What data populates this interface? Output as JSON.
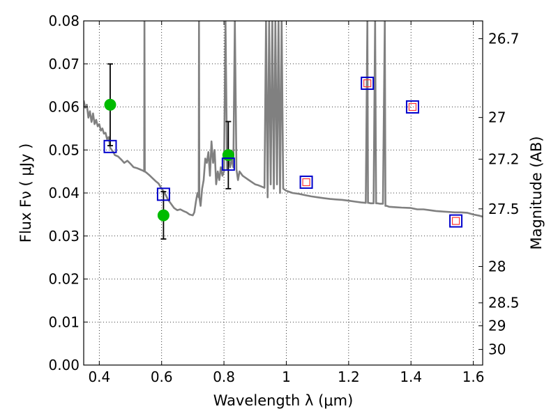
{
  "chart_data": {
    "type": "line",
    "xlabel": "Wavelength  λ (μm)",
    "ylabel": "Flux  Fν  ( μJy )",
    "y2label": "Magnitude (AB)",
    "xlim": [
      0.35,
      1.63
    ],
    "ylim": [
      0,
      0.08
    ],
    "grid": true,
    "x_ticks": [
      {
        "value": 0.4,
        "label": "0.4"
      },
      {
        "value": 0.6,
        "label": "0.6"
      },
      {
        "value": 0.8,
        "label": "0.8"
      },
      {
        "value": 1.0,
        "label": "1"
      },
      {
        "value": 1.2,
        "label": "1.2"
      },
      {
        "value": 1.4,
        "label": "1.4"
      },
      {
        "value": 1.6,
        "label": "1.6"
      }
    ],
    "y_ticks": [
      {
        "value": 0.0,
        "label": "0.00"
      },
      {
        "value": 0.01,
        "label": "0.01"
      },
      {
        "value": 0.02,
        "label": "0.02"
      },
      {
        "value": 0.03,
        "label": "0.03"
      },
      {
        "value": 0.04,
        "label": "0.04"
      },
      {
        "value": 0.05,
        "label": "0.05"
      },
      {
        "value": 0.06,
        "label": "0.06"
      },
      {
        "value": 0.07,
        "label": "0.07"
      },
      {
        "value": 0.08,
        "label": "0.08"
      }
    ],
    "mag_ticks": [
      {
        "value": 26.7,
        "label": "26.7"
      },
      {
        "value": 27.0,
        "label": "27"
      },
      {
        "value": 27.2,
        "label": "27.2"
      },
      {
        "value": 27.5,
        "label": "27.5"
      },
      {
        "value": 28.0,
        "label": "28"
      },
      {
        "value": 28.5,
        "label": "28.5"
      },
      {
        "value": 29.0,
        "label": "29"
      },
      {
        "value": 30.0,
        "label": "30"
      }
    ],
    "colors": {
      "spectrum": "#808080",
      "observed": "#00bb00",
      "model_box": "#0000cc",
      "model_inner": "#ff3333",
      "errorbar": "#000000"
    },
    "spectrum": {
      "x": [
        0.35,
        0.355,
        0.36,
        0.365,
        0.37,
        0.375,
        0.38,
        0.385,
        0.39,
        0.395,
        0.4,
        0.405,
        0.41,
        0.415,
        0.42,
        0.425,
        0.43,
        0.435,
        0.44,
        0.445,
        0.45,
        0.46,
        0.47,
        0.48,
        0.49,
        0.5,
        0.51,
        0.52,
        0.53,
        0.54,
        0.544,
        0.545,
        0.546,
        0.55,
        0.56,
        0.57,
        0.58,
        0.59,
        0.6,
        0.61,
        0.62,
        0.63,
        0.64,
        0.65,
        0.66,
        0.67,
        0.68,
        0.69,
        0.7,
        0.705,
        0.71,
        0.715,
        0.719,
        0.72,
        0.721,
        0.725,
        0.73,
        0.735,
        0.74,
        0.745,
        0.75,
        0.755,
        0.76,
        0.765,
        0.77,
        0.775,
        0.78,
        0.785,
        0.79,
        0.795,
        0.8,
        0.805,
        0.81,
        0.815,
        0.82,
        0.825,
        0.83,
        0.835,
        0.84,
        0.845,
        0.85,
        0.86,
        0.87,
        0.88,
        0.89,
        0.9,
        0.91,
        0.92,
        0.93,
        0.935,
        0.94,
        0.945,
        0.95,
        0.955,
        0.96,
        0.965,
        0.97,
        0.975,
        0.98,
        0.985,
        0.99,
        1.0,
        1.02,
        1.04,
        1.06,
        1.08,
        1.1,
        1.12,
        1.14,
        1.16,
        1.18,
        1.2,
        1.22,
        1.24,
        1.255,
        1.26,
        1.262,
        1.265,
        1.27,
        1.28,
        1.285,
        1.288,
        1.292,
        1.3,
        1.31,
        1.316,
        1.318,
        1.322,
        1.33,
        1.35,
        1.37,
        1.4,
        1.42,
        1.44,
        1.46,
        1.48,
        1.5,
        1.52,
        1.54,
        1.56,
        1.58,
        1.6,
        1.62,
        1.63
      ],
      "y": [
        0.0615,
        0.0598,
        0.0605,
        0.0575,
        0.059,
        0.0565,
        0.0585,
        0.056,
        0.057,
        0.0555,
        0.056,
        0.0545,
        0.055,
        0.0538,
        0.054,
        0.0525,
        0.053,
        0.0505,
        0.05,
        0.0495,
        0.0488,
        0.0485,
        0.0478,
        0.047,
        0.0475,
        0.0468,
        0.046,
        0.0458,
        0.0455,
        0.0452,
        0.045,
        0.08,
        0.045,
        0.0448,
        0.0442,
        0.0435,
        0.0428,
        0.0422,
        0.041,
        0.04,
        0.0385,
        0.0375,
        0.0365,
        0.036,
        0.0362,
        0.0358,
        0.0355,
        0.035,
        0.0348,
        0.0355,
        0.038,
        0.04,
        0.039,
        0.08,
        0.039,
        0.037,
        0.041,
        0.043,
        0.048,
        0.047,
        0.0495,
        0.044,
        0.052,
        0.047,
        0.05,
        0.042,
        0.045,
        0.043,
        0.046,
        0.044,
        0.045,
        0.08,
        0.0455,
        0.048,
        0.046,
        0.048,
        0.046,
        0.08,
        0.0455,
        0.043,
        0.045,
        0.044,
        0.0435,
        0.043,
        0.0425,
        0.042,
        0.0418,
        0.0415,
        0.0412,
        0.08,
        0.039,
        0.08,
        0.042,
        0.08,
        0.041,
        0.08,
        0.042,
        0.08,
        0.04,
        0.08,
        0.041,
        0.0405,
        0.04,
        0.0398,
        0.0395,
        0.0392,
        0.039,
        0.0388,
        0.0386,
        0.0385,
        0.0384,
        0.0382,
        0.038,
        0.0378,
        0.0377,
        0.08,
        0.0377,
        0.0377,
        0.0376,
        0.0376,
        0.08,
        0.0376,
        0.0376,
        0.0375,
        0.0375,
        0.08,
        0.037,
        0.037,
        0.0368,
        0.0367,
        0.0366,
        0.0365,
        0.0362,
        0.0362,
        0.036,
        0.0358,
        0.0357,
        0.0356,
        0.0355,
        0.0355,
        0.0354,
        0.035,
        0.0347,
        0.0345
      ]
    },
    "observed": [
      {
        "x": 0.435,
        "y": 0.0605,
        "err": 0.0095
      },
      {
        "x": 0.606,
        "y": 0.0348,
        "err": 0.0055
      },
      {
        "x": 0.814,
        "y": 0.0488,
        "err": 0.0078
      }
    ],
    "model_points": [
      {
        "x": 0.435,
        "y": 0.0508,
        "inner": false
      },
      {
        "x": 0.606,
        "y": 0.0397,
        "inner": false
      },
      {
        "x": 0.814,
        "y": 0.0467,
        "inner": false
      },
      {
        "x": 1.064,
        "y": 0.0425,
        "inner": true
      },
      {
        "x": 1.26,
        "y": 0.0655,
        "inner": true
      },
      {
        "x": 1.405,
        "y": 0.06,
        "inner": true
      },
      {
        "x": 1.544,
        "y": 0.0335,
        "inner": true
      }
    ]
  }
}
